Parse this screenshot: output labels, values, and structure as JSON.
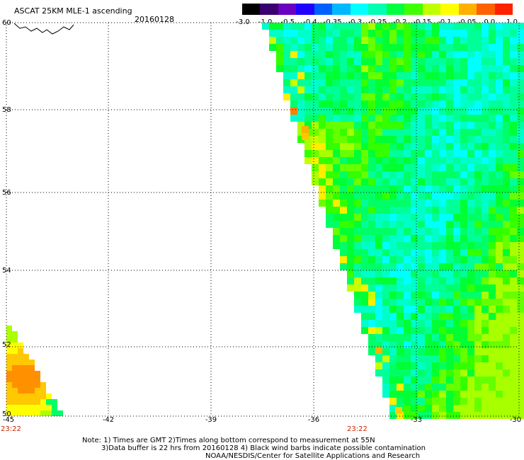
{
  "header": {
    "title": "ASCAT 25KM MLE-1 ascending",
    "date": "20160128"
  },
  "colorbar": {
    "labels": [
      "-3.0",
      "-1.0",
      "-0.5",
      "-0.4",
      "-0.35",
      "-0.3",
      "-0.25",
      "-0.2",
      "-0.15",
      "-0.1",
      "-0.05",
      "0.0",
      "1.0"
    ],
    "colors": [
      "#000000",
      "#3a0070",
      "#6a00c0",
      "#2000ff",
      "#0060ff",
      "#00b8ff",
      "#00ffff",
      "#00ffb0",
      "#00ff40",
      "#40ff00",
      "#c0ff00",
      "#ffff00",
      "#ffb000",
      "#ff6000",
      "#ff2000"
    ]
  },
  "axes": {
    "lat_labels": [
      "60",
      "58",
      "56",
      "54",
      "52",
      "50"
    ],
    "lon_labels": [
      "-45",
      "-42",
      "-39",
      "-36",
      "-33",
      "-30"
    ],
    "grid": "dotted"
  },
  "times": [
    "23:22",
    "23:22"
  ],
  "notes": [
    "Note: 1) Times are GMT 2)Times along bottom correspond to measurement at 55N",
    "3)Data buffer is 22 hrs from 20160128 4) Black wind barbs indicate possible contamination",
    "NOAA/NESDIS/Center for Satellite Applications and Research"
  ]
}
